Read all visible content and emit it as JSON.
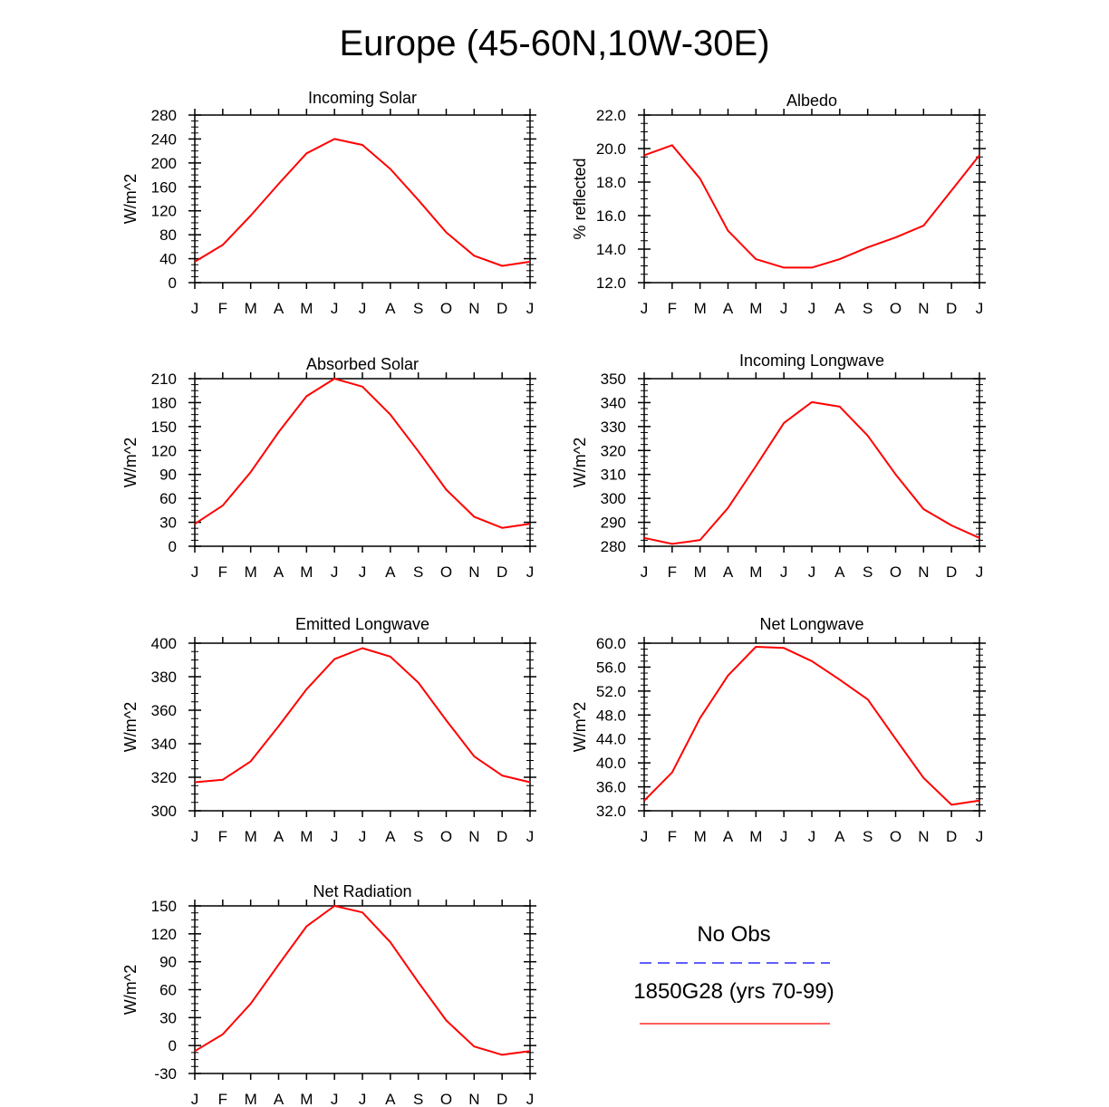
{
  "figure_title": "Europe (45-60N,10W-30E)",
  "colors": {
    "model": "#ff0000",
    "obs": "#0000ff",
    "axis": "#000000"
  },
  "legend": {
    "obs_label": "No Obs",
    "model_label": "1850G28 (yrs 70-99)"
  },
  "chart_data": [
    {
      "type": "line",
      "title": "Incoming Solar",
      "ylabel": "W/m^2",
      "categories": [
        "J",
        "F",
        "M",
        "A",
        "M",
        "J",
        "J",
        "A",
        "S",
        "O",
        "N",
        "D",
        "J"
      ],
      "ylim": [
        0,
        280
      ],
      "yticks": [
        0,
        40,
        80,
        120,
        160,
        200,
        240,
        280
      ],
      "ytick_labels": [
        "0",
        "40",
        "80",
        "120",
        "160",
        "200",
        "240",
        "280"
      ],
      "series": [
        {
          "name": "1850G28 (yrs 70-99)",
          "values": [
            35,
            63,
            112,
            165,
            216,
            240,
            230,
            190,
            138,
            84,
            45,
            28,
            35
          ]
        }
      ]
    },
    {
      "type": "line",
      "title": "Albedo",
      "ylabel": "% reflected",
      "categories": [
        "J",
        "F",
        "M",
        "A",
        "M",
        "J",
        "J",
        "A",
        "S",
        "O",
        "N",
        "D",
        "J"
      ],
      "ylim": [
        12.0,
        22.0
      ],
      "yticks": [
        12,
        14,
        16,
        18,
        20,
        22
      ],
      "ytick_labels": [
        "12.0",
        "14.0",
        "16.0",
        "18.0",
        "20.0",
        "22.0"
      ],
      "series": [
        {
          "name": "1850G28 (yrs 70-99)",
          "values": [
            19.6,
            20.2,
            18.2,
            15.1,
            13.4,
            12.9,
            12.9,
            13.4,
            14.1,
            14.7,
            15.4,
            17.5,
            19.6
          ]
        }
      ]
    },
    {
      "type": "line",
      "title": "Absorbed Solar",
      "ylabel": "W/m^2",
      "categories": [
        "J",
        "F",
        "M",
        "A",
        "M",
        "J",
        "J",
        "A",
        "S",
        "O",
        "N",
        "D",
        "J"
      ],
      "ylim": [
        0,
        210
      ],
      "yticks": [
        0,
        30,
        60,
        90,
        120,
        150,
        180,
        210
      ],
      "ytick_labels": [
        "0",
        "30",
        "60",
        "90",
        "120",
        "150",
        "180",
        "210"
      ],
      "series": [
        {
          "name": "1850G28 (yrs 70-99)",
          "values": [
            28,
            51,
            93,
            143,
            188,
            210,
            200,
            165,
            119,
            71,
            37,
            23,
            28
          ]
        }
      ]
    },
    {
      "type": "line",
      "title": "Incoming Longwave",
      "ylabel": "W/m^2",
      "categories": [
        "J",
        "F",
        "M",
        "A",
        "M",
        "J",
        "J",
        "A",
        "S",
        "O",
        "N",
        "D",
        "J"
      ],
      "ylim": [
        280,
        350
      ],
      "yticks": [
        280,
        290,
        300,
        310,
        320,
        330,
        340,
        350
      ],
      "ytick_labels": [
        "280",
        "290",
        "300",
        "310",
        "320",
        "330",
        "340",
        "350"
      ],
      "series": [
        {
          "name": "1850G28 (yrs 70-99)",
          "values": [
            283.5,
            281,
            282.6,
            296,
            313.5,
            331.5,
            340.2,
            338.3,
            326.2,
            310,
            295.5,
            288.7,
            283.5
          ]
        }
      ]
    },
    {
      "type": "line",
      "title": "Emitted Longwave",
      "ylabel": "W/m^2",
      "categories": [
        "J",
        "F",
        "M",
        "A",
        "M",
        "J",
        "J",
        "A",
        "S",
        "O",
        "N",
        "D",
        "J"
      ],
      "ylim": [
        300,
        400
      ],
      "yticks": [
        300,
        320,
        340,
        360,
        380,
        400
      ],
      "ytick_labels": [
        "300",
        "320",
        "340",
        "360",
        "380",
        "400"
      ],
      "series": [
        {
          "name": "1850G28 (yrs 70-99)",
          "values": [
            317,
            318.5,
            329.5,
            350.5,
            372.5,
            390.5,
            397,
            392,
            376.5,
            354,
            332.5,
            321,
            317
          ]
        }
      ]
    },
    {
      "type": "line",
      "title": "Net Longwave",
      "ylabel": "W/m^2",
      "categories": [
        "J",
        "F",
        "M",
        "A",
        "M",
        "J",
        "J",
        "A",
        "S",
        "O",
        "N",
        "D",
        "J"
      ],
      "ylim": [
        32.0,
        60.0
      ],
      "yticks": [
        32,
        36,
        40,
        44,
        48,
        52,
        56,
        60
      ],
      "ytick_labels": [
        "32.0",
        "36.0",
        "40.0",
        "44.0",
        "48.0",
        "52.0",
        "56.0",
        "60.0"
      ],
      "series": [
        {
          "name": "1850G28 (yrs 70-99)",
          "values": [
            33.7,
            38.4,
            47.5,
            54.6,
            59.4,
            59.2,
            57,
            53.9,
            50.6,
            44,
            37.5,
            33,
            33.7
          ]
        }
      ]
    },
    {
      "type": "line",
      "title": "Net Radiation",
      "ylabel": "W/m^2",
      "categories": [
        "J",
        "F",
        "M",
        "A",
        "M",
        "J",
        "J",
        "A",
        "S",
        "O",
        "N",
        "D",
        "J"
      ],
      "ylim": [
        -30,
        150
      ],
      "yticks": [
        -30,
        0,
        30,
        60,
        90,
        120,
        150
      ],
      "ytick_labels": [
        "-30",
        "0",
        "30",
        "60",
        "90",
        "120",
        "150"
      ],
      "series": [
        {
          "name": "1850G28 (yrs 70-99)",
          "values": [
            -6,
            12,
            45,
            87,
            128,
            150,
            143,
            111,
            68,
            27,
            -1,
            -10,
            -6
          ]
        }
      ]
    }
  ]
}
